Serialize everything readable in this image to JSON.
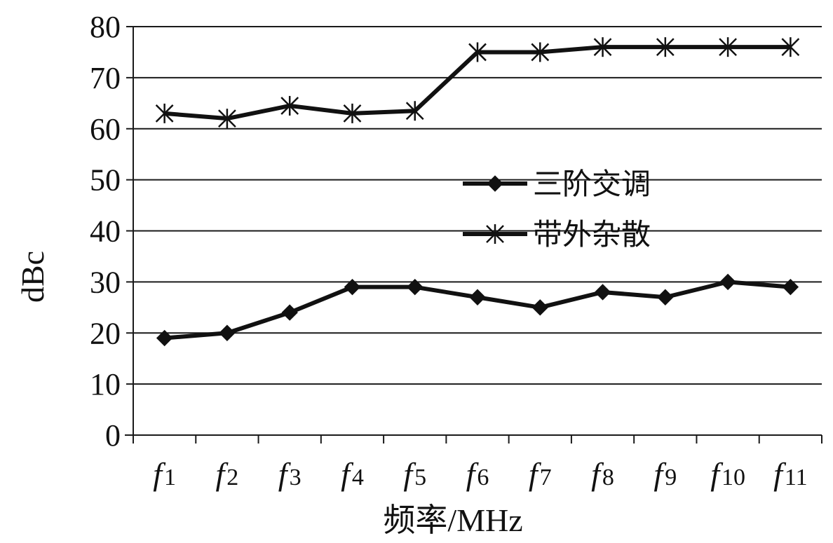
{
  "chart_data": {
    "type": "line",
    "title": "",
    "xlabel": "频率/MHz",
    "ylabel": "dBc",
    "ylim": [
      0,
      80
    ],
    "yticks": [
      0,
      10,
      20,
      30,
      40,
      50,
      60,
      70,
      80
    ],
    "grid": true,
    "legend_position": "center-right",
    "categories": [
      {
        "base": "f",
        "sub": "1"
      },
      {
        "base": "f",
        "sub": "2"
      },
      {
        "base": "f",
        "sub": "3"
      },
      {
        "base": "f",
        "sub": "4"
      },
      {
        "base": "f",
        "sub": "5"
      },
      {
        "base": "f",
        "sub": "6"
      },
      {
        "base": "f",
        "sub": "7"
      },
      {
        "base": "f",
        "sub": "8"
      },
      {
        "base": "f",
        "sub": "9"
      },
      {
        "base": "f",
        "sub": "10"
      },
      {
        "base": "f",
        "sub": "11"
      }
    ],
    "series": [
      {
        "name": "三阶交调",
        "marker": "diamond",
        "color": "#111111",
        "values": [
          19,
          20,
          24,
          29,
          29,
          27,
          25,
          28,
          27,
          30,
          29
        ]
      },
      {
        "name": "带外杂散",
        "marker": "asterisk",
        "color": "#111111",
        "values": [
          63,
          62,
          64.5,
          63,
          63.5,
          75,
          75,
          76,
          76,
          76,
          76
        ]
      }
    ]
  }
}
